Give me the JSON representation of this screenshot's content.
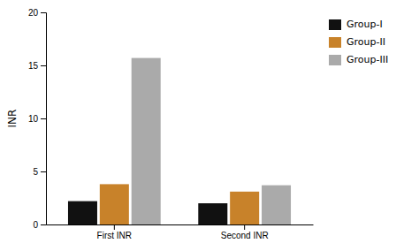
{
  "chart_data": {
    "type": "bar",
    "categories": [
      "First INR",
      "Second INR"
    ],
    "series": [
      {
        "name": "Group-I",
        "color": "#111111",
        "values": [
          2.2,
          2.0
        ]
      },
      {
        "name": "Group-II",
        "color": "#c8822a",
        "values": [
          3.8,
          3.1
        ]
      },
      {
        "name": "Group-III",
        "color": "#aaaaaa",
        "values": [
          15.7,
          3.7
        ]
      }
    ],
    "ylabel": "INR",
    "ylim": [
      0,
      20
    ],
    "yticks": [
      0,
      5,
      10,
      15,
      20
    ],
    "legend": "upper right"
  }
}
